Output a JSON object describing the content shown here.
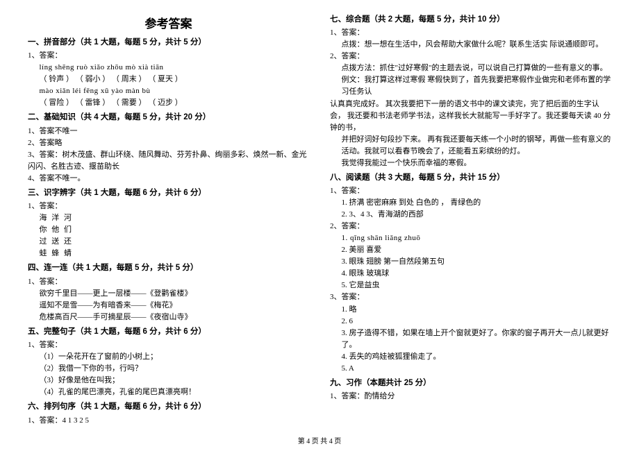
{
  "title": "参考答案",
  "footer": "第 4 页  共 4 页",
  "sections": [
    {
      "head": "一、拼音部分（共 1 大题，每题 5 分，共计 5 分）",
      "lines": [
        {
          "t": "1、答案：",
          "cls": "line"
        },
        {
          "t": "líng shēng     ruò xiǎo   zhōu mò    xià tiān",
          "cls": "line indent1 pinyin"
        },
        {
          "t": "（ 铃声 ）    （ 弱小 ） （ 周末 ）     （ 夏天 ）",
          "cls": "line indent1"
        },
        {
          "t": "mào xiǎn    léi fēng    xū yào     màn bù",
          "cls": "line indent1 pinyin"
        },
        {
          "t": "（ 冒险 ）    （ 雷锋 ）  （ 需要 ）   （ 迈步 ）",
          "cls": "line indent1"
        }
      ]
    },
    {
      "head": "二、基础知识（共 4 大题，每题 5 分，共计 20 分）",
      "lines": [
        {
          "t": "1、答案不唯一",
          "cls": "line"
        },
        {
          "t": "2、答案略",
          "cls": "line"
        },
        {
          "t": "3、答案：树木茂盛、群山环绕、随风舞动、芬芳扑鼻、绚丽多彩、焕然一新、金光闪闪、名胜古迹、揠苗助长",
          "cls": "line"
        },
        {
          "t": "4、答案不唯一。",
          "cls": "line"
        }
      ]
    },
    {
      "head": "三、识字辨字（共 1 大题，每题 6 分，共计 6 分）",
      "lines": [
        {
          "t": "1、答案：",
          "cls": "line"
        },
        {
          "t": "海   洋   河",
          "cls": "line indent1 wide"
        },
        {
          "t": "你   他   们",
          "cls": "line indent1 wide"
        },
        {
          "t": "过   送   还",
          "cls": "line indent1 wide"
        },
        {
          "t": "蛙   蜂   蜻",
          "cls": "line indent1 wide"
        }
      ]
    },
    {
      "head": "四、连一连（共 1 大题，每题 5 分，共计 5 分）",
      "lines": [
        {
          "t": "1、答案：",
          "cls": "line"
        },
        {
          "t": "欲穷千里目——更上一层楼——《登鹳雀楼》",
          "cls": "line indent1"
        },
        {
          "t": "遥知不是雪——为有暗香来——《梅花》",
          "cls": "line indent1"
        },
        {
          "t": "危楼高百尺——手可摘星辰——《夜宿山寺》",
          "cls": "line indent1"
        }
      ]
    },
    {
      "head": "五、完整句子（共 1 大题，每题 6 分，共计 6 分）",
      "lines": [
        {
          "t": "1、答案：",
          "cls": "line"
        },
        {
          "t": "（1）一朵花开在了窗前的小树上；",
          "cls": "line indent1"
        },
        {
          "t": "（2）我借一下你的书，行吗？",
          "cls": "line indent1"
        },
        {
          "t": "（3）好像是他在叫我；",
          "cls": "line indent1"
        },
        {
          "t": "（4）孔雀的尾巴漂亮，孔雀的尾巴真漂亮啊！",
          "cls": "line indent1"
        }
      ]
    },
    {
      "head": "六、排列句序（共 1 大题，每题 6 分，共计 6 分）",
      "lines": [
        {
          "t": "1、答案：4  1  3  2  5",
          "cls": "line"
        }
      ]
    },
    {
      "head": "七、综合题（共 2 大题，每题 5 分，共计 10 分）",
      "lines": [
        {
          "t": "1、答案：",
          "cls": "line"
        },
        {
          "t": "点拨：想一想在生活中，风会帮助大家做什么呢？联系生活实  际说通顺即可。",
          "cls": "line indent1"
        },
        {
          "t": "2、答案：",
          "cls": "line"
        },
        {
          "t": "点拨方法：抓住\"过好寒假\"的主题去说，可以说自己打算做的一些有意义的事。",
          "cls": "line indent1"
        },
        {
          "t": "例文：我打算这样过寒假  寒假快到了，首先我要把寒假作业做完和老师布置的学习任务认",
          "cls": "line indent1"
        },
        {
          "t": "认真真完成好。  其次我要把下一册的语文书中的课文读完，完了把后面的生字认会，  我还要和书法老师学书法，这样我长大就能写一手好字了。我还要每天读 40 分钟的书，",
          "cls": "line"
        },
        {
          "t": "并把好词好句段抄下来。  再有我还要每天练一个小时的钢琴，再做一些有意义的活动。我就可以看春节晚会了，还能看五彩缤纷的灯。",
          "cls": "line indent1"
        },
        {
          "t": "我觉得我能过一个快乐而幸福的寒假。",
          "cls": "line indent1"
        }
      ]
    },
    {
      "head": "八、阅读题（共 3 大题，每题 5 分，共计 15 分）",
      "lines": [
        {
          "t": "1、答案：",
          "cls": "line"
        },
        {
          "t": "1. 挤满  密密麻麻  到处  白色的  ， 青绿色的",
          "cls": "line indent1"
        },
        {
          "t": "2.   3、4  3、青海湖的西部",
          "cls": "line indent1"
        },
        {
          "t": "2、答案：",
          "cls": "line"
        },
        {
          "t": "1. qīng  shān  liǎng  zhuō",
          "cls": "line indent1 pinyin"
        },
        {
          "t": "2. 美丽  喜爱",
          "cls": "line indent1"
        },
        {
          "t": "3. 眼珠  翅膀    第一自然段第五句",
          "cls": "line indent1"
        },
        {
          "t": "4. 眼珠  玻璃球",
          "cls": "line indent1"
        },
        {
          "t": "5. 它是益虫",
          "cls": "line indent1"
        },
        {
          "t": "3、答案：",
          "cls": "line"
        },
        {
          "t": "1. 略",
          "cls": "line indent1"
        },
        {
          "t": "2. 6",
          "cls": "line indent1"
        },
        {
          "t": "3. 房子造得不错，如果在墙上开个窗就更好了。你家的窗子再开大一点儿就更好了。",
          "cls": "line indent1"
        },
        {
          "t": "4. 丢失的鸡娃被狐狸偷走了。",
          "cls": "line indent1"
        },
        {
          "t": "5. A",
          "cls": "line indent1"
        }
      ]
    },
    {
      "head": "九、习作（本题共计 25 分）",
      "lines": [
        {
          "t": "1、答案：酌情给分",
          "cls": "line"
        }
      ]
    }
  ]
}
